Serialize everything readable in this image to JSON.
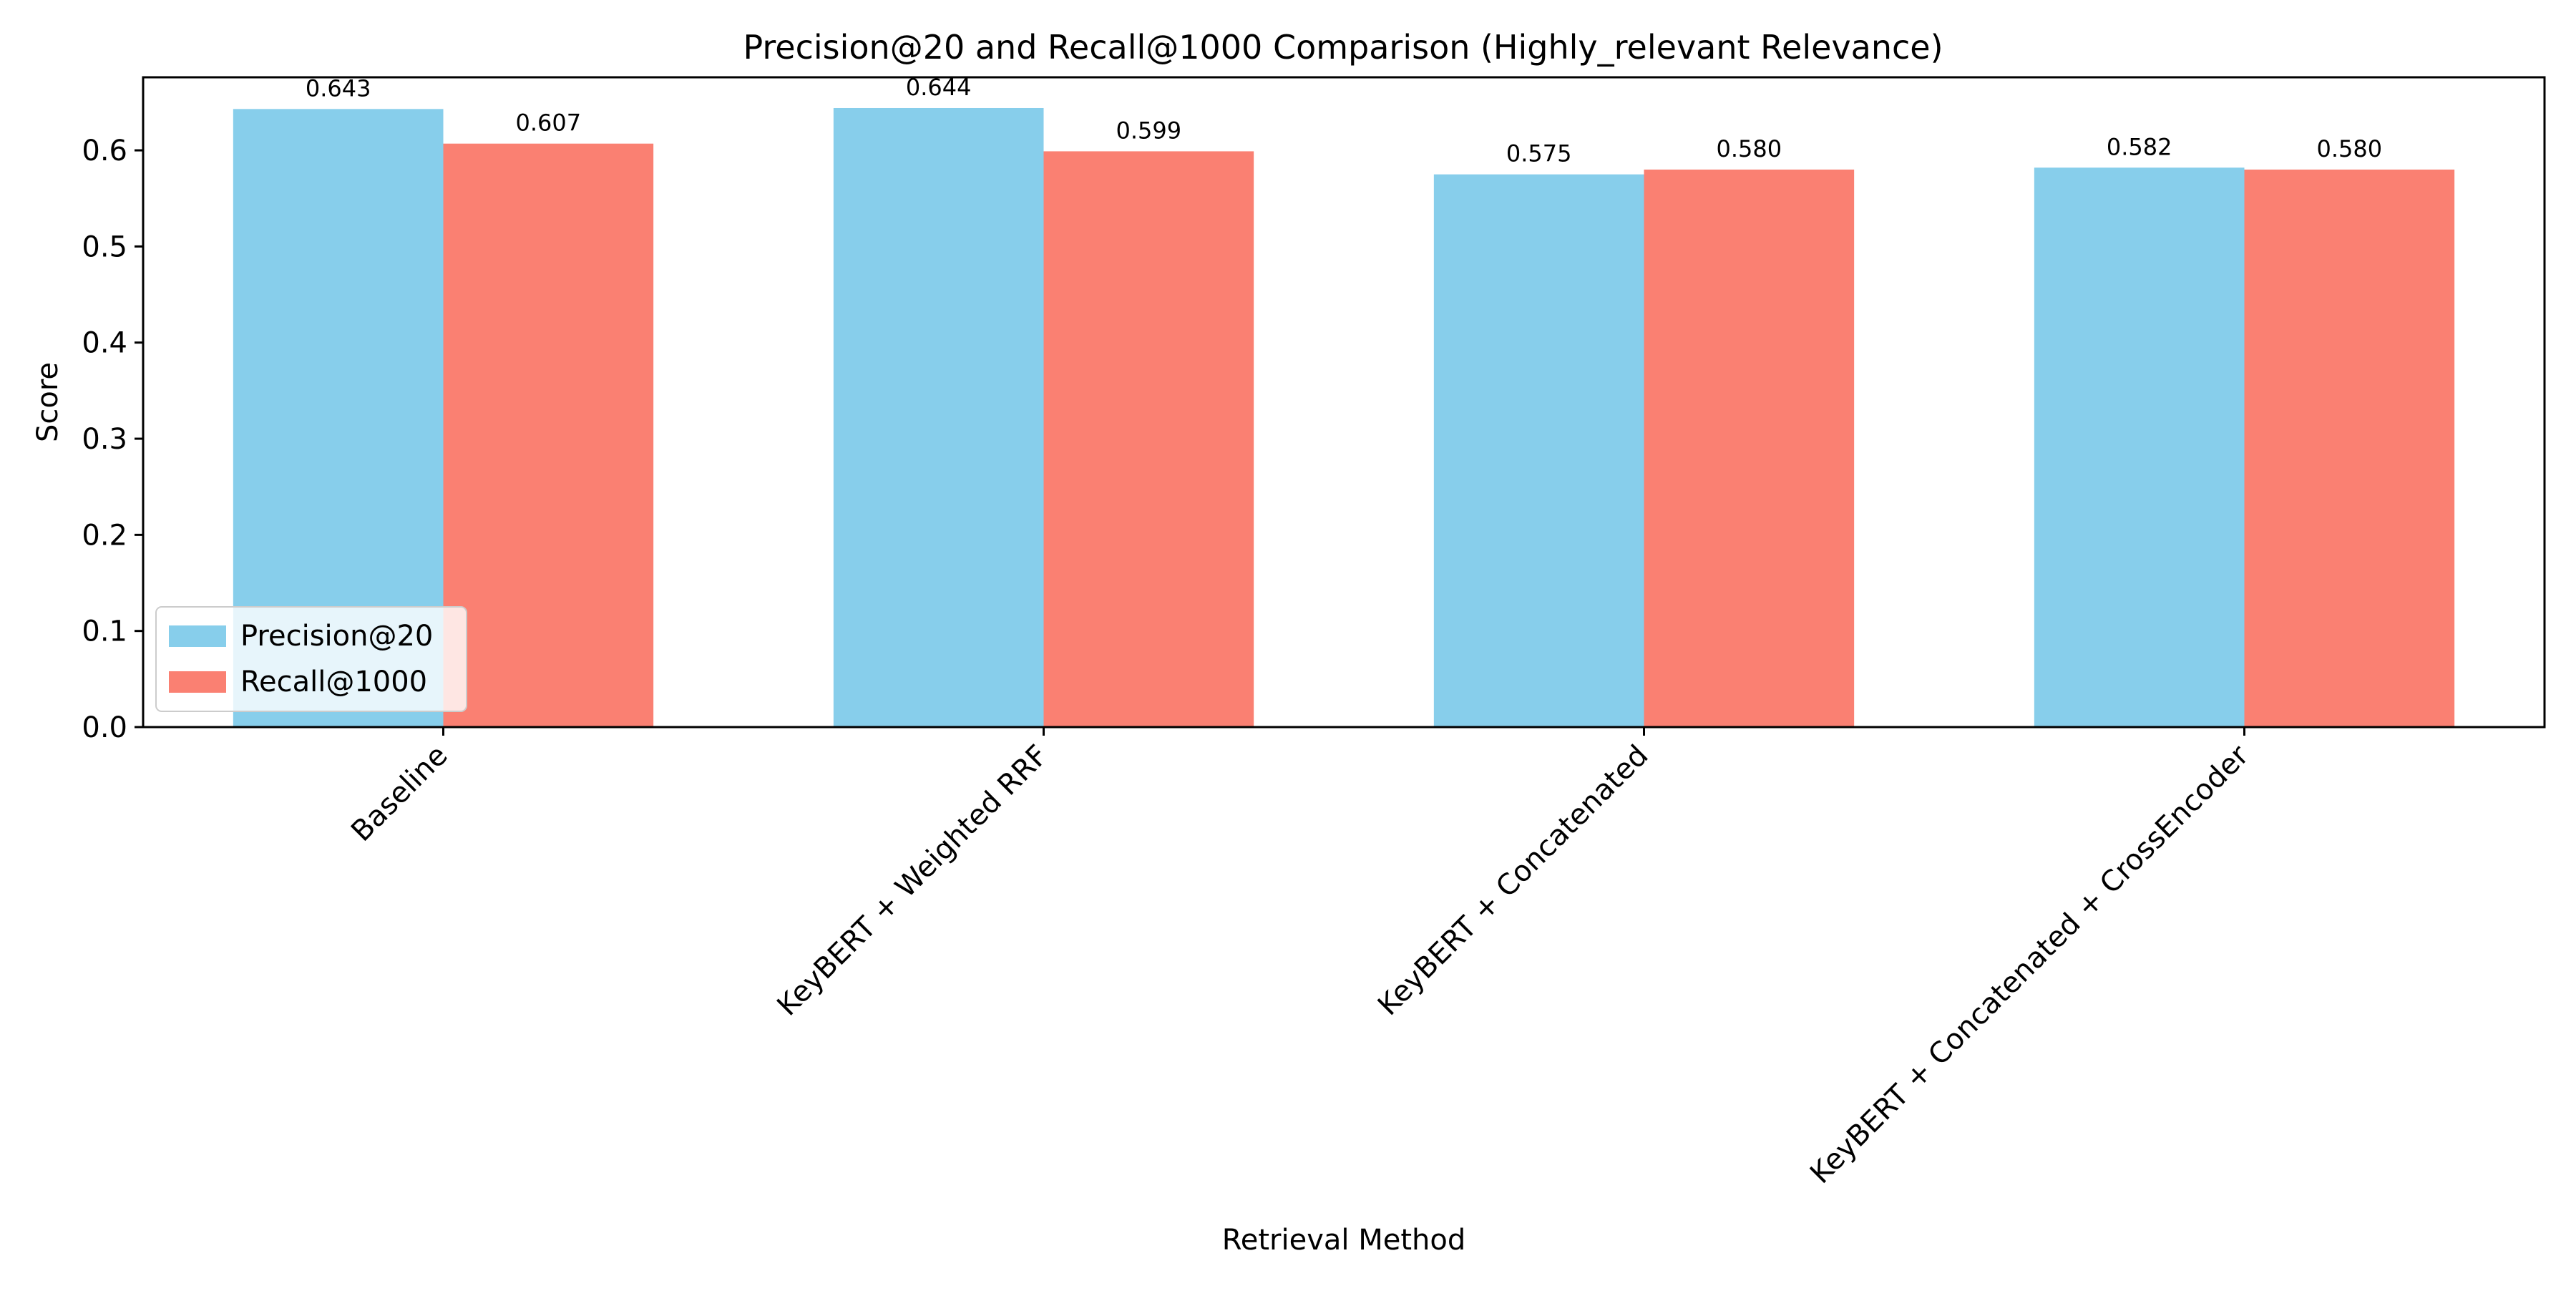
{
  "chart_data": {
    "type": "bar",
    "title": "Precision@20 and Recall@1000 Comparison (Highly_relevant Relevance)",
    "xlabel": "Retrieval Method",
    "ylabel": "Score",
    "categories": [
      "Baseline",
      "KeyBERT + Weighted RRF",
      "KeyBERT + Concatenated",
      "KeyBERT + Concatenated + CrossEncoder"
    ],
    "series": [
      {
        "name": "Precision@20",
        "color": "#87CEEB",
        "values": [
          0.643,
          0.644,
          0.575,
          0.582
        ],
        "labels": [
          "0.643",
          "0.644",
          "0.575",
          "0.582"
        ]
      },
      {
        "name": "Recall@1000",
        "color": "#FA8072",
        "values": [
          0.607,
          0.599,
          0.58,
          0.58
        ],
        "labels": [
          "0.607",
          "0.599",
          "0.580",
          "0.580"
        ]
      }
    ],
    "ylim": [
      0,
      0.676
    ],
    "yticks": [
      "0.0",
      "0.1",
      "0.2",
      "0.3",
      "0.4",
      "0.5",
      "0.6"
    ],
    "grid": false,
    "legend_position": "lower-left"
  }
}
